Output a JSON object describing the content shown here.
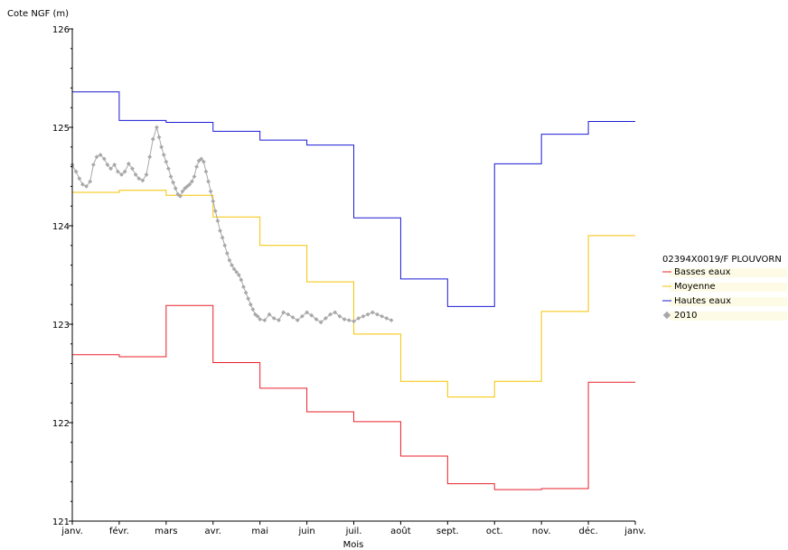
{
  "chart_data": {
    "type": "line",
    "ylabel": "Cote NGF (m)",
    "xlabel": "Mois",
    "ylim": [
      121,
      126
    ],
    "y_ticks": [
      "121",
      "122",
      "123",
      "124",
      "125",
      "126"
    ],
    "x_tick_labels": [
      "janv.",
      "févr.",
      "mars",
      "avr.",
      "mai",
      "juin",
      "juil.",
      "août",
      "sept.",
      "oct.",
      "nov.",
      "déc.",
      "janv."
    ],
    "legend_title": "02394X0019/F PLOUVORN",
    "legend_position": "right",
    "series": [
      {
        "name": "Basses eaux",
        "kind": "step",
        "color": "#e8202a",
        "values": [
          122.69,
          122.67,
          123.19,
          122.61,
          122.35,
          122.11,
          122.01,
          121.66,
          121.38,
          121.32,
          121.33,
          122.41
        ]
      },
      {
        "name": "Moyenne",
        "kind": "step",
        "color": "#f5c400",
        "values": [
          124.34,
          124.36,
          124.31,
          124.09,
          123.8,
          123.43,
          122.9,
          122.42,
          122.26,
          122.42,
          123.13,
          123.9
        ]
      },
      {
        "name": "Hautes eaux",
        "kind": "step",
        "color": "#1a1ad6",
        "values": [
          125.36,
          125.07,
          125.05,
          124.96,
          124.87,
          124.82,
          124.08,
          123.46,
          123.18,
          124.63,
          124.93,
          125.06
        ]
      },
      {
        "name": "2010",
        "kind": "scatter-line",
        "color": "#a8a8a8",
        "x": [
          0.0,
          0.08,
          0.15,
          0.22,
          0.3,
          0.38,
          0.45,
          0.52,
          0.6,
          0.68,
          0.75,
          0.82,
          0.9,
          0.97,
          1.05,
          1.12,
          1.2,
          1.28,
          1.35,
          1.42,
          1.5,
          1.58,
          1.65,
          1.72,
          1.8,
          1.85,
          1.9,
          1.95,
          2.0,
          2.05,
          2.1,
          2.15,
          2.2,
          2.25,
          2.3,
          2.35,
          2.4,
          2.45,
          2.5,
          2.55,
          2.6,
          2.65,
          2.7,
          2.75,
          2.8,
          2.85,
          2.9,
          2.95,
          3.0,
          3.05,
          3.1,
          3.15,
          3.2,
          3.25,
          3.3,
          3.35,
          3.4,
          3.45,
          3.5,
          3.55,
          3.6,
          3.65,
          3.7,
          3.75,
          3.8,
          3.85,
          3.9,
          3.95,
          4.0,
          4.1,
          4.2,
          4.3,
          4.4,
          4.5,
          4.6,
          4.7,
          4.8,
          4.9,
          5.0,
          5.1,
          5.2,
          5.3,
          5.4,
          5.5,
          5.6,
          5.7,
          5.8,
          5.9,
          6.0,
          6.1,
          6.2,
          6.3,
          6.4,
          6.5,
          6.6,
          6.7,
          6.8
        ],
        "values": [
          124.62,
          124.55,
          124.48,
          124.42,
          124.4,
          124.45,
          124.62,
          124.7,
          124.72,
          124.68,
          124.62,
          124.58,
          124.62,
          124.55,
          124.52,
          124.55,
          124.63,
          124.58,
          124.52,
          124.48,
          124.46,
          124.52,
          124.7,
          124.88,
          125.0,
          124.9,
          124.8,
          124.72,
          124.65,
          124.58,
          124.5,
          124.44,
          124.38,
          124.32,
          124.3,
          124.35,
          124.38,
          124.4,
          124.42,
          124.45,
          124.5,
          124.6,
          124.66,
          124.68,
          124.65,
          124.55,
          124.45,
          124.35,
          124.25,
          124.15,
          124.05,
          123.95,
          123.88,
          123.8,
          123.72,
          123.65,
          123.6,
          123.56,
          123.53,
          123.5,
          123.45,
          123.38,
          123.32,
          123.26,
          123.2,
          123.15,
          123.1,
          123.08,
          123.05,
          123.04,
          123.1,
          123.06,
          123.04,
          123.12,
          123.1,
          123.07,
          123.04,
          123.08,
          123.12,
          123.09,
          123.05,
          123.02,
          123.06,
          123.1,
          123.12,
          123.08,
          123.05,
          123.04,
          123.03,
          123.06,
          123.08,
          123.1,
          123.12,
          123.1,
          123.08,
          123.06,
          123.04
        ]
      }
    ]
  }
}
